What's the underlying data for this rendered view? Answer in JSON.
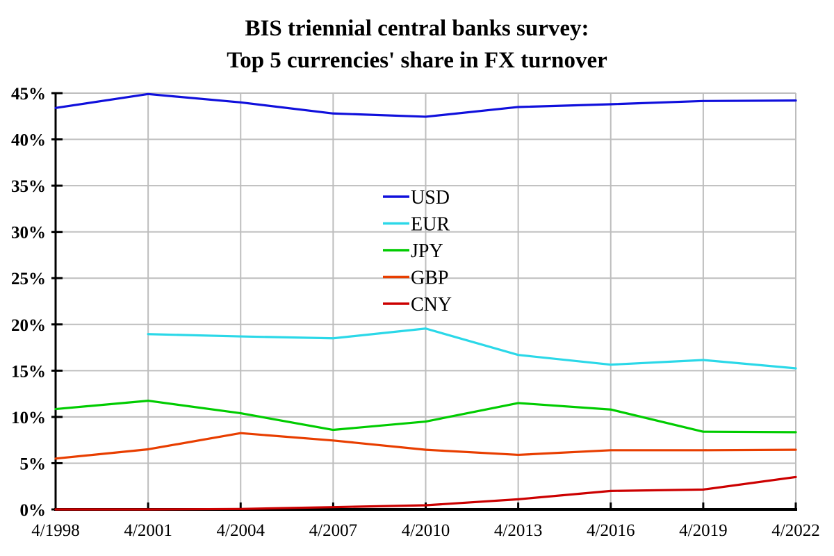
{
  "title": {
    "line1": "BIS triennial central banks survey:",
    "line2": "Top 5 currencies' share in FX turnover"
  },
  "chart_data": {
    "type": "line",
    "title": "BIS triennial central banks survey: Top 5 currencies' share in FX turnover",
    "categories": [
      "4/1998",
      "4/2001",
      "4/2004",
      "4/2007",
      "4/2010",
      "4/2013",
      "4/2016",
      "4/2019",
      "4/2022"
    ],
    "series": [
      {
        "name": "USD",
        "color": "#1010DC",
        "values": [
          43.4,
          44.9,
          44.0,
          42.8,
          42.45,
          43.5,
          43.8,
          44.15,
          44.2
        ]
      },
      {
        "name": "EUR",
        "color": "#2BD8E8",
        "values": [
          null,
          18.95,
          18.7,
          18.5,
          19.55,
          16.7,
          15.65,
          16.15,
          15.25
        ]
      },
      {
        "name": "JPY",
        "color": "#00CC00",
        "values": [
          10.85,
          11.75,
          10.4,
          8.6,
          9.5,
          11.5,
          10.8,
          8.4,
          8.35
        ]
      },
      {
        "name": "GBP",
        "color": "#E83E00",
        "values": [
          5.5,
          6.5,
          8.25,
          7.45,
          6.45,
          5.9,
          6.4,
          6.4,
          6.45
        ]
      },
      {
        "name": "CNY",
        "color": "#CC0000",
        "values": [
          0.0,
          0.0,
          0.05,
          0.25,
          0.45,
          1.1,
          2.0,
          2.15,
          3.5
        ]
      }
    ],
    "xlabel": "",
    "ylabel": "",
    "ylim": [
      0,
      45
    ],
    "ytick_step": 5,
    "ytick_suffix": "%",
    "y_tick_labels": [
      "0%",
      "5%",
      "10%",
      "15%",
      "20%",
      "25%",
      "30%",
      "35%",
      "40%",
      "45%"
    ],
    "grid": true,
    "legend": {
      "entries": [
        "USD",
        "EUR",
        "JPY",
        "GBP",
        "CNY"
      ],
      "position": "inside-center"
    },
    "colors": {
      "grid": "#BDBDBD",
      "axis": "#000000",
      "text": "#000000",
      "background": "#FFFFFF"
    }
  }
}
